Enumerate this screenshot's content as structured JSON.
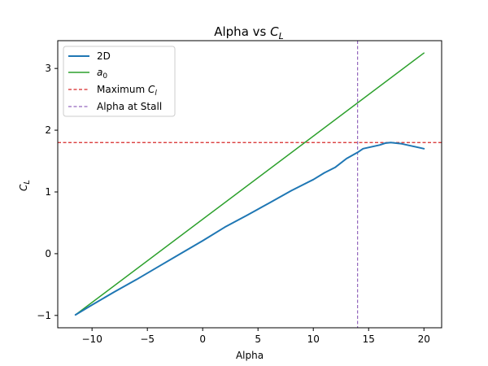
{
  "chart_data": {
    "type": "line",
    "title": "Alpha vs C_L",
    "title_main": "Alpha vs ",
    "title_sym": "C",
    "title_sub": "L",
    "xlabel": "Alpha",
    "ylabel_sym": "C",
    "ylabel_sub": "L",
    "xlim": [
      -13.1,
      21.6
    ],
    "ylim": [
      -1.2,
      3.45
    ],
    "xticks": [
      -10,
      -5,
      0,
      5,
      10,
      15,
      20
    ],
    "xtick_labels": [
      "−10",
      "−5",
      "0",
      "5",
      "10",
      "15",
      "20"
    ],
    "yticks": [
      -1,
      0,
      1,
      2,
      3
    ],
    "ytick_labels": [
      "−1",
      "0",
      "1",
      "2",
      "3"
    ],
    "grid": false,
    "legend_position": "upper-left",
    "series": [
      {
        "name": "2D",
        "color": "#1f77b4",
        "style": "solid",
        "x": [
          -11.5,
          -10,
          -8,
          -6,
          -4,
          -2,
          0,
          2,
          4,
          5,
          6,
          8,
          10,
          11,
          12,
          13,
          14,
          14.5,
          15,
          15.5,
          16,
          16.5,
          17,
          18,
          19,
          20
        ],
        "y": [
          -0.99,
          -0.83,
          -0.62,
          -0.42,
          -0.21,
          0.0,
          0.21,
          0.43,
          0.62,
          0.72,
          0.82,
          1.02,
          1.2,
          1.31,
          1.4,
          1.54,
          1.64,
          1.7,
          1.72,
          1.74,
          1.76,
          1.79,
          1.8,
          1.78,
          1.74,
          1.7
        ]
      },
      {
        "name": "a_0",
        "name_sym": "a",
        "name_sub": "0",
        "color": "#2ca02c",
        "style": "solid",
        "x": [
          -11.5,
          20
        ],
        "y": [
          -0.99,
          3.25
        ]
      }
    ],
    "reference_lines": [
      {
        "name": "Maximum C_l",
        "name_main": "Maximum ",
        "name_sym": "C",
        "name_sub": "l",
        "orientation": "horizontal",
        "value": 1.8,
        "color": "#d62728",
        "style": "dashed"
      },
      {
        "name": "Alpha at Stall",
        "orientation": "vertical",
        "value": 14,
        "color": "#9467bd",
        "style": "dashed"
      }
    ]
  }
}
